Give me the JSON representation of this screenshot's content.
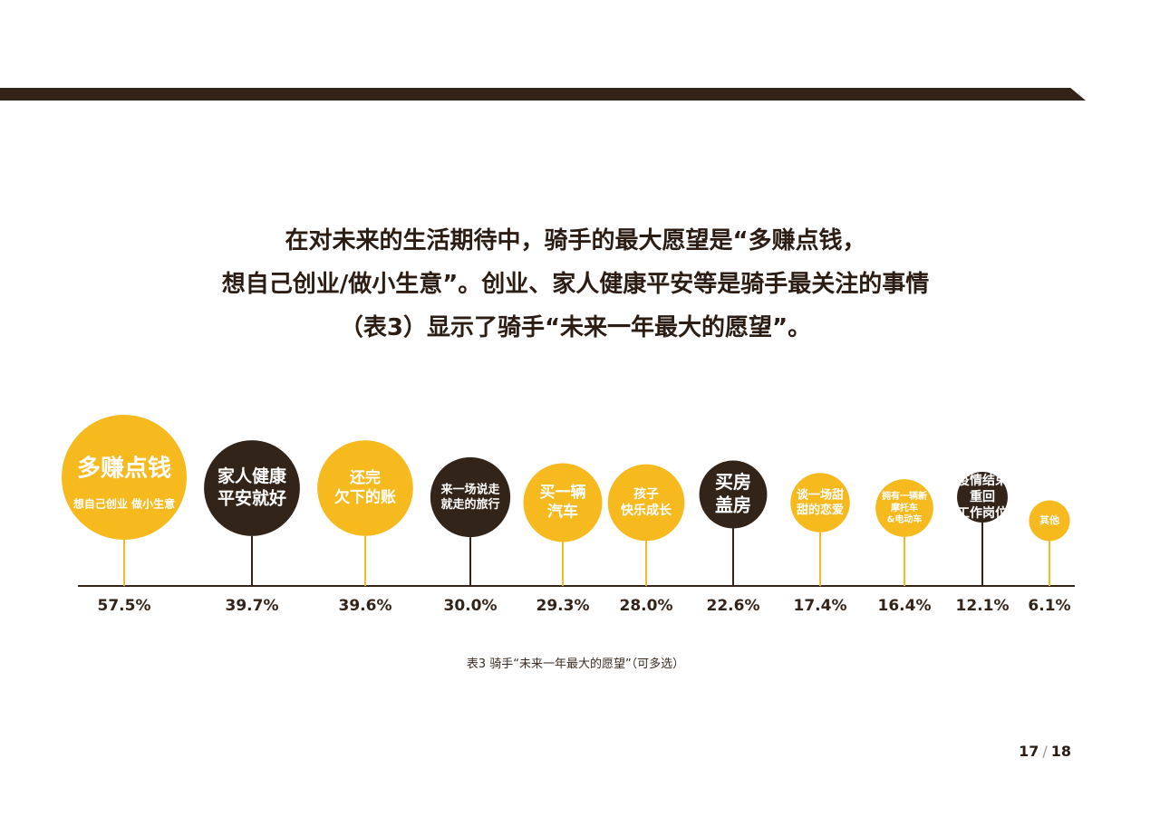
{
  "page": {
    "intro_lines": [
      "在对未来的生活期待中，骑手的最大愿望是“多赚点钱，",
      "想自己创业/做小生意”。创业、家人健康平安等是骑手最关注的事情",
      "（表3）显示了骑手“未来一年最大的愿望”。"
    ],
    "caption": "表3  骑手“未来一年最大的愿望”（可多选）",
    "page_current": "17",
    "page_sep": "/",
    "page_total": "18"
  },
  "colors": {
    "yellow": "#f6b91e",
    "dark": "#33241a",
    "white": "#ffffff"
  },
  "chart_data": {
    "type": "bubble-lollipop",
    "unit": "%",
    "items": [
      {
        "label_lines": [
          "多赚点钱"
        ],
        "sublabel": "想自己创业 做小生意",
        "value": 57.5,
        "display": "57.5%",
        "style": "yellow"
      },
      {
        "label_lines": [
          "家人健康",
          "平安就好"
        ],
        "value": 39.7,
        "display": "39.7%",
        "style": "dark"
      },
      {
        "label_lines": [
          "还完",
          "欠下的账"
        ],
        "value": 39.6,
        "display": "39.6%",
        "style": "yellow"
      },
      {
        "label_lines": [
          "来一场说走",
          "就走的旅行"
        ],
        "value": 30.0,
        "display": "30.0%",
        "style": "dark"
      },
      {
        "label_lines": [
          "买一辆",
          "汽车"
        ],
        "value": 29.3,
        "display": "29.3%",
        "style": "yellow"
      },
      {
        "label_lines": [
          "孩子",
          "快乐成长"
        ],
        "value": 28.0,
        "display": "28.0%",
        "style": "yellow"
      },
      {
        "label_lines": [
          "买房",
          "盖房"
        ],
        "value": 22.6,
        "display": "22.6%",
        "style": "dark"
      },
      {
        "label_lines": [
          "谈一场甜",
          "甜的恋爱"
        ],
        "value": 17.4,
        "display": "17.4%",
        "style": "yellow"
      },
      {
        "label_lines": [
          "拥有一辆新",
          "摩托车",
          "&电动车"
        ],
        "value": 16.4,
        "display": "16.4%",
        "style": "yellow"
      },
      {
        "label_lines": [
          "疫情结束",
          "重回",
          "工作岗位"
        ],
        "value": 12.1,
        "display": "12.1%",
        "style": "dark"
      },
      {
        "label_lines": [
          "其他"
        ],
        "value": 6.1,
        "display": "6.1%",
        "style": "yellow"
      }
    ]
  }
}
